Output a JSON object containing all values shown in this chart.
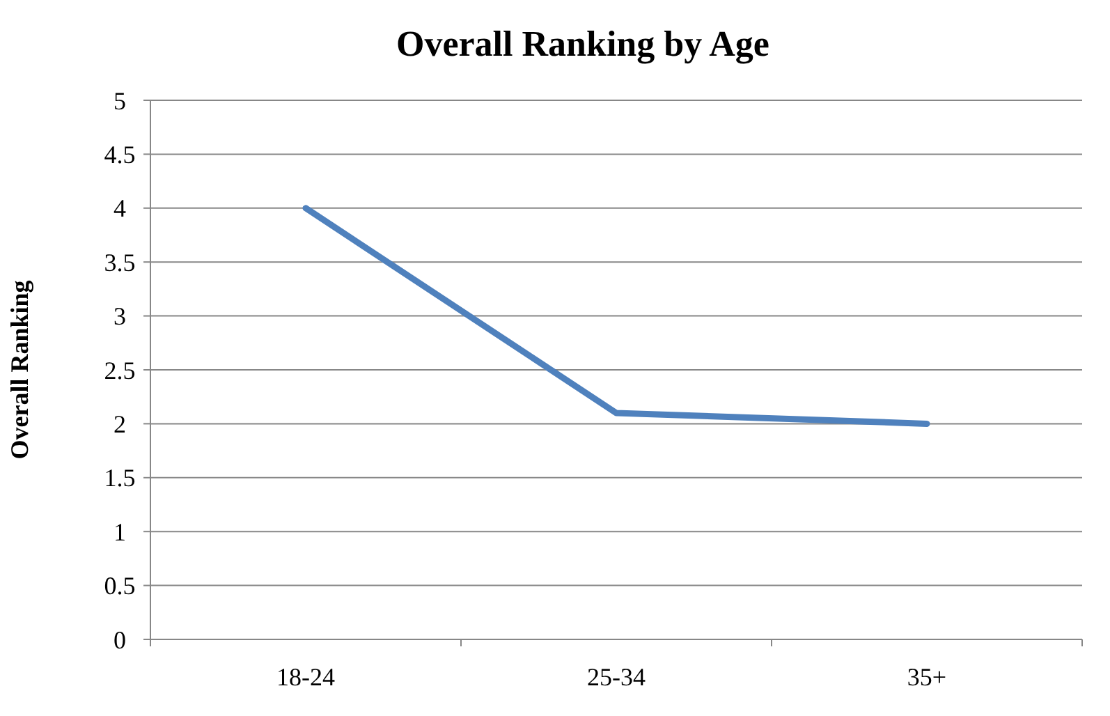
{
  "chart_data": {
    "type": "line",
    "title": "Overall Ranking by Age",
    "ylabel": "Overall Ranking",
    "categories": [
      "18-24",
      "25-34",
      "35+"
    ],
    "series": [
      {
        "color": "#4f81bd",
        "values": [
          4,
          2.1,
          2.0
        ]
      }
    ],
    "ylim": [
      0,
      5
    ],
    "yticks": [
      0,
      0.5,
      1,
      1.5,
      2,
      2.5,
      3,
      3.5,
      4,
      4.5,
      5
    ],
    "grid": "y",
    "marker": "none",
    "line_style": "solid"
  }
}
